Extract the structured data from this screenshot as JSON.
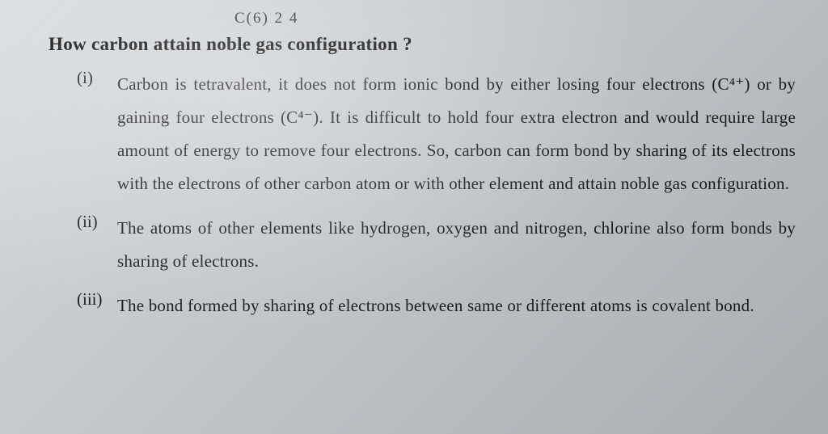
{
  "page": {
    "background_gradient": [
      "#d8dce0",
      "#c8ccd0",
      "#babfc4",
      "#a8adb2"
    ],
    "text_color": "#1a1a1a",
    "font_family": "Georgia, Times New Roman, serif"
  },
  "partial_top": "C(6)   2        4",
  "question_title": "How carbon attain noble gas configuration ?",
  "items": [
    {
      "num": "(i)",
      "text": "Carbon is tetravalent, it does not form ionic bond by either losing four electrons (C⁴⁺) or by gaining four electrons (C⁴⁻). It is difficult to hold four extra electron and would require large amount of energy to remove four electrons. So, carbon can form bond by sharing of its electrons with the electrons of other carbon atom or with other element and attain noble gas configuration."
    },
    {
      "num": "(ii)",
      "text": "The atoms of other elements like hydrogen, oxygen and nitrogen, chlorine also form bonds by sharing of electrons."
    },
    {
      "num": "(iii)",
      "text": "The bond formed by sharing of electrons between same or different atoms is covalent bond."
    }
  ],
  "typography": {
    "title_fontsize": 23,
    "body_fontsize": 21,
    "line_height": 1.95,
    "title_weight": "bold"
  }
}
